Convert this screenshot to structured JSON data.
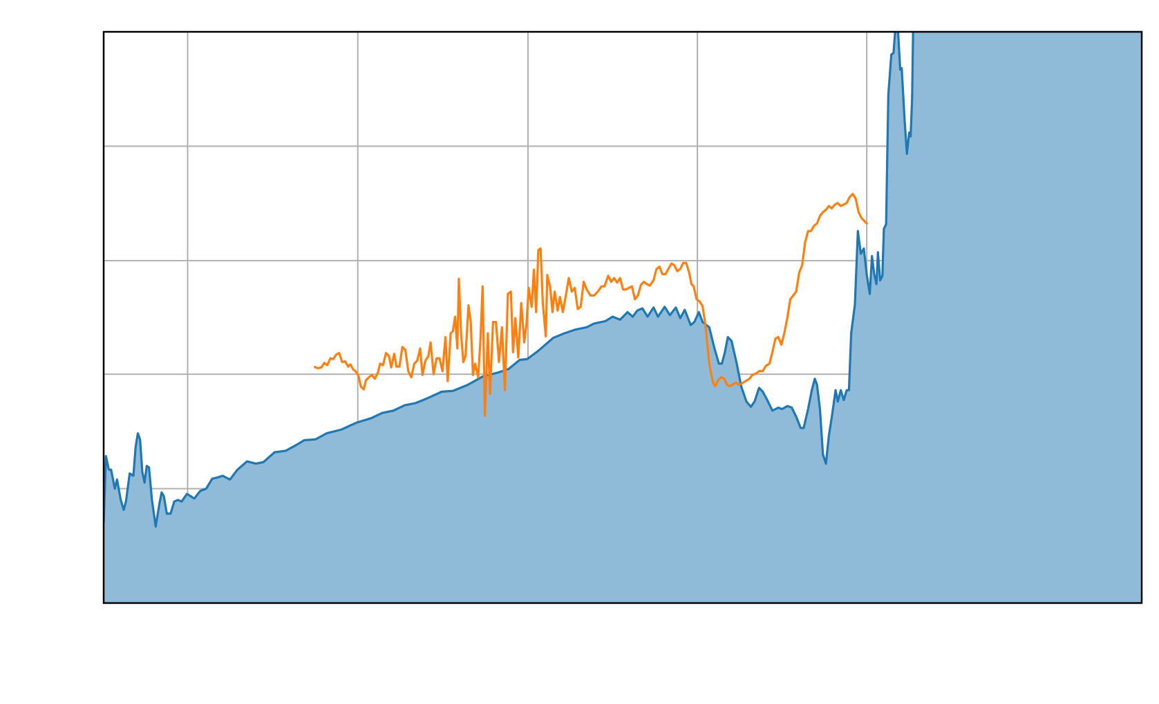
{
  "chart_data": {
    "type": "line",
    "xlim": [
      140,
      1537
    ],
    "ylim": [
      0,
      754
    ],
    "xticks": [
      253,
      482,
      711,
      939,
      1167,
      1396
    ],
    "yticks": [
      151,
      302,
      452,
      603
    ],
    "grid": true,
    "series": [
      {
        "color": "#1f77b4",
        "fill_color": "#8fbbd9",
        "x": [
          140,
          143,
          147,
          150,
          155,
          158,
          163,
          167,
          170,
          175,
          180,
          183,
          186,
          189,
          192,
          195,
          198,
          201,
          205,
          210,
          215,
          218,
          221,
          225,
          230,
          235,
          240,
          245,
          252,
          257,
          262,
          270,
          278,
          286,
          294,
          300,
          310,
          320,
          333,
          345,
          355,
          370,
          385,
          400,
          410,
          425,
          440,
          460,
          480,
          500,
          515,
          530,
          545,
          560,
          575,
          595,
          610,
          630,
          650,
          670,
          685,
          700,
          710,
          725,
          745,
          760,
          775,
          790,
          800,
          815,
          825,
          835,
          845,
          852,
          858,
          865,
          872,
          880,
          886,
          895,
          902,
          910,
          916,
          922,
          930,
          935,
          941,
          946,
          955,
          962,
          968,
          972,
          976,
          980,
          985,
          992,
          998,
          1005,
          1011,
          1016,
          1022,
          1027,
          1033,
          1040,
          1048,
          1053,
          1060,
          1066,
          1072,
          1078,
          1082,
          1088,
          1093,
          1097,
          1100,
          1104,
          1108,
          1112,
          1116,
          1120,
          1125,
          1128,
          1132,
          1136,
          1140,
          1143,
          1146,
          1151,
          1155,
          1159,
          1163,
          1167,
          1171,
          1174,
          1177,
          1180,
          1182,
          1185,
          1188,
          1190,
          1193,
          1196,
          1200,
          1203,
          1206,
          1209,
          1212,
          1214,
          1218,
          1221,
          1224,
          1226,
          1228,
          1230,
          1537
        ],
        "values": [
          106,
          194,
          176,
          176,
          151,
          163,
          136,
          123,
          134,
          171,
          168,
          206,
          224,
          216,
          173,
          159,
          181,
          179,
          136,
          101,
          131,
          146,
          141,
          118,
          118,
          134,
          136,
          134,
          144,
          141,
          138,
          148,
          151,
          164,
          166,
          168,
          163,
          176,
          187,
          184,
          186,
          199,
          201,
          209,
          215,
          216,
          224,
          229,
          238,
          244,
          251,
          254,
          261,
          264,
          270,
          279,
          280,
          288,
          299,
          304,
          309,
          321,
          322,
          333,
          350,
          356,
          361,
          364,
          369,
          372,
          378,
          374,
          384,
          378,
          386,
          389,
          378,
          390,
          378,
          391,
          380,
          390,
          376,
          387,
          367,
          371,
          384,
          371,
          364,
          336,
          316,
          316,
          331,
          351,
          346,
          316,
          286,
          266,
          259,
          266,
          284,
          279,
          268,
          254,
          258,
          256,
          260,
          258,
          246,
          231,
          231,
          256,
          281,
          296,
          288,
          256,
          196,
          184,
          221,
          246,
          281,
          266,
          281,
          268,
          281,
          281,
          356,
          394,
          491,
          461,
          468,
          433,
          408,
          458,
          434,
          421,
          463,
          426,
          432,
          494,
          500,
          671,
          724,
          726,
          766,
          756,
          704,
          706,
          636,
          593,
          621,
          616,
          666,
          800,
          800
        ]
      },
      {
        "color": "#ff7f0e",
        "x": [
          423,
          428,
          433,
          437,
          441,
          445,
          449,
          453,
          457,
          461,
          465,
          469,
          472,
          476,
          479,
          483,
          486,
          490,
          493,
          497,
          501,
          505,
          509,
          512,
          516,
          520,
          524,
          527,
          531,
          534,
          538,
          542,
          546,
          550,
          554,
          558,
          562,
          566,
          569,
          573,
          577,
          580,
          584,
          588,
          592,
          596,
          600,
          603,
          607,
          610,
          613,
          616,
          618,
          621,
          624,
          627,
          631,
          634,
          637,
          640,
          644,
          647,
          650,
          653,
          657,
          660,
          664,
          668,
          672,
          676,
          680,
          684,
          688,
          691,
          694,
          698,
          702,
          706,
          709,
          712,
          716,
          719,
          722,
          725,
          728,
          731,
          735,
          737,
          741,
          744,
          747,
          751,
          754,
          758,
          762,
          766,
          770,
          774,
          778,
          782,
          786,
          790,
          795,
          800,
          805,
          810,
          814,
          819,
          823,
          827,
          831,
          835,
          839,
          843,
          847,
          851,
          855,
          859,
          863,
          867,
          871,
          875,
          880,
          884,
          888,
          892,
          896,
          900,
          904,
          908,
          912,
          916,
          920,
          924,
          928,
          931,
          934,
          938,
          942,
          946,
          950,
          955,
          960,
          963,
          967,
          971,
          975,
          979,
          983,
          987,
          991,
          995,
          999,
          1004,
          1009,
          1013,
          1018,
          1022,
          1027,
          1031,
          1036,
          1040,
          1044,
          1048,
          1052,
          1056,
          1060,
          1064,
          1068,
          1072,
          1076,
          1080,
          1084,
          1088,
          1092,
          1096,
          1100,
          1104,
          1108,
          1112,
          1116,
          1120,
          1124,
          1128,
          1132,
          1136,
          1140,
          1144,
          1148,
          1152,
          1156,
          1160,
          1164,
          1168
        ],
        "values": [
          312,
          310,
          311,
          317,
          314,
          323,
          322,
          328,
          330,
          318,
          319,
          312,
          315,
          308,
          306,
          300,
          286,
          282,
          294,
          298,
          301,
          296,
          304,
          316,
          314,
          330,
          326,
          311,
          329,
          312,
          312,
          338,
          334,
          306,
          298,
          316,
          320,
          336,
          301,
          320,
          326,
          344,
          302,
          323,
          323,
          306,
          351,
          293,
          356,
          359,
          378,
          336,
          428,
          356,
          318,
          326,
          393,
          371,
          301,
          316,
          298,
          346,
          418,
          247,
          356,
          276,
          371,
          371,
          318,
          364,
          281,
          408,
          411,
          331,
          376,
          324,
          396,
          344,
          368,
          416,
          391,
          440,
          384,
          466,
          468,
          396,
          352,
          433,
          416,
          384,
          411,
          386,
          404,
          384,
          406,
          429,
          411,
          416,
          388,
          391,
          424,
          414,
          406,
          406,
          411,
          418,
          418,
          432,
          424,
          429,
          423,
          429,
          414,
          414,
          416,
          418,
          401,
          406,
          420,
          424,
          421,
          419,
          426,
          441,
          444,
          434,
          434,
          441,
          448,
          446,
          438,
          441,
          449,
          449,
          436,
          421,
          418,
          401,
          398,
          392,
          366,
          316,
          291,
          286,
          294,
          298,
          296,
          288,
          286,
          289,
          291,
          288,
          290,
          293,
          296,
          301,
          303,
          306,
          306,
          313,
          316,
          331,
          349,
          351,
          341,
          356,
          376,
          401,
          406,
          411,
          436,
          446,
          476,
          491,
          491,
          498,
          501,
          511,
          516,
          519,
          524,
          521,
          526,
          528,
          524,
          526,
          528,
          536,
          540,
          534,
          516,
          508,
          504,
          500
        ]
      }
    ]
  }
}
